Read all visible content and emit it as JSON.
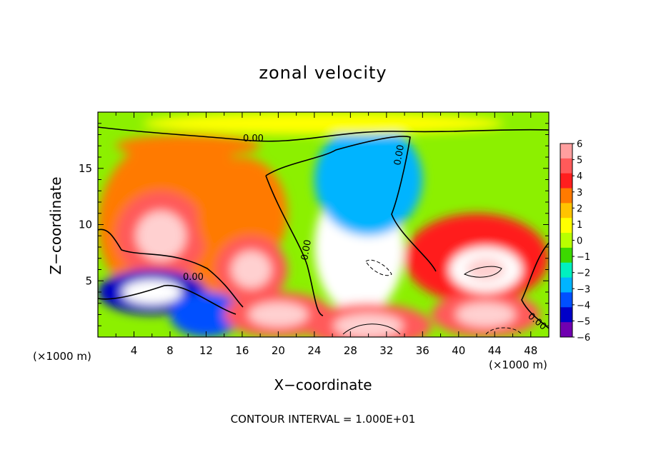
{
  "chart_data": {
    "type": "heatmap",
    "title": "zonal velocity",
    "xlabel": "X−coordinate",
    "ylabel": "Z−coordinate",
    "x_unit_label": "(×1000 m)",
    "footer": "CONTOUR INTERVAL = 1.000E+01",
    "xlim": [
      0,
      50
    ],
    "ylim": [
      0,
      20
    ],
    "x_ticks": [
      4,
      8,
      12,
      16,
      20,
      24,
      28,
      32,
      36,
      40,
      44,
      48
    ],
    "y_ticks": [
      5,
      10,
      15
    ],
    "colorbar": {
      "ticks": [
        6,
        5,
        4,
        3,
        2,
        1,
        0,
        -1,
        -2,
        -3,
        -4,
        -5,
        -6
      ],
      "colors": [
        "#ff9f9f",
        "#ff5a5a",
        "#ff1e1e",
        "#ff7a00",
        "#ffc400",
        "#ffff00",
        "#b8ff00",
        "#3cd800",
        "#00f0c0",
        "#00b4ff",
        "#0050ff",
        "#0000c8",
        "#7000b0"
      ]
    },
    "contour_labels": [
      "0.00",
      "0.00",
      "0.00",
      "0.00",
      "0.00"
    ],
    "field_blobs": [
      {
        "x": 9,
        "y": 10,
        "rx": 9,
        "ry": 8,
        "v": 3
      },
      {
        "x": 7,
        "y": 9,
        "rx": 5,
        "ry": 4,
        "v": 5
      },
      {
        "x": 16,
        "y": 11,
        "rx": 5,
        "ry": 5,
        "v": 3
      },
      {
        "x": 17,
        "y": 6,
        "rx": 4,
        "ry": 3,
        "v": 5
      },
      {
        "x": 29,
        "y": 8,
        "rx": 5,
        "ry": 6,
        "v": -6
      },
      {
        "x": 30,
        "y": 14,
        "rx": 6,
        "ry": 5,
        "v": -3
      },
      {
        "x": 42,
        "y": 7,
        "rx": 8,
        "ry": 4,
        "v": 4
      },
      {
        "x": 43,
        "y": 6,
        "rx": 4,
        "ry": 2,
        "v": 6
      },
      {
        "x": 6,
        "y": 4,
        "rx": 6,
        "ry": 2,
        "v": -5
      },
      {
        "x": 12,
        "y": 2,
        "rx": 4,
        "ry": 2,
        "v": -4
      },
      {
        "x": 20,
        "y": 2,
        "rx": 6,
        "ry": 2,
        "v": 5
      },
      {
        "x": 30,
        "y": 1,
        "rx": 7,
        "ry": 2,
        "v": 5
      },
      {
        "x": 43,
        "y": 2,
        "rx": 6,
        "ry": 2,
        "v": 5
      },
      {
        "x": 10,
        "y": 17,
        "rx": 8,
        "ry": 1,
        "v": 3
      },
      {
        "x": 25,
        "y": 19,
        "rx": 20,
        "ry": 1,
        "v": 1
      }
    ]
  }
}
